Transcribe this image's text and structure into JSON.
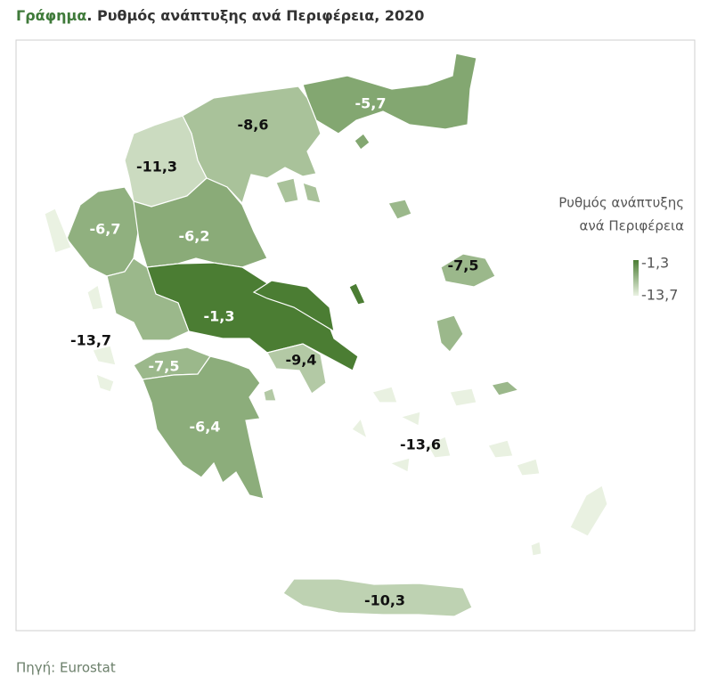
{
  "chart_data": {
    "type": "choropleth",
    "title": "Γράφημα",
    "subtitle": ". Ρυθμός ανάπτυξης ανά Περιφέρεια, 2020",
    "values": [
      -5.7,
      -8.6,
      -11.3,
      -6.7,
      -6.2,
      -1.3,
      -13.7,
      -9.4,
      -7.5,
      -7.5,
      -6.4,
      -13.6,
      -10.3
    ],
    "value_labels": [
      "-5,7",
      "-8,6",
      "-11,3",
      "-6,7",
      "-6,2",
      "-1,3",
      "-13,7",
      "-9,4",
      "-7,5",
      "-7,5",
      "-6,4",
      "-13,6",
      "-10,3"
    ],
    "color_min": "#eaf2e2",
    "color_max": "#4b7d33",
    "legend": {
      "title": [
        "Ρυθμός ανάπτυξης",
        "ανά Περιφέρεια"
      ],
      "max": -1.3,
      "max_label": "-1,3",
      "min": -13.7,
      "min_label": "-13,7"
    },
    "source": "Πηγή: Eurostat"
  }
}
